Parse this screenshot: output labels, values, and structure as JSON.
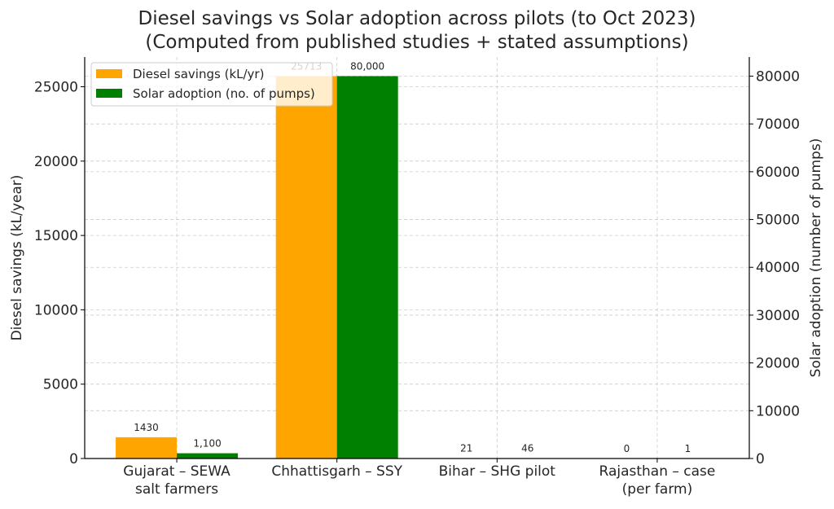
{
  "chart_data": {
    "type": "bar",
    "title_lines": [
      "Diesel savings vs Solar adoption across pilots (to Oct 2023)",
      "(Computed from published studies + stated assumptions)"
    ],
    "categories": [
      [
        "Gujarat – SEWA",
        "salt farmers"
      ],
      [
        "Chhattisgarh – SSY"
      ],
      [
        "Bihar – SHG pilot"
      ],
      [
        "Rajasthan – case",
        "(per farm)"
      ]
    ],
    "ylabel": "Diesel savings (kL/year)",
    "y2label": "Solar adoption (number of pumps)",
    "ylim": [
      0,
      27000
    ],
    "y2lim": [
      0,
      84000
    ],
    "yticks": [
      0,
      5000,
      10000,
      15000,
      20000,
      25000
    ],
    "y2ticks": [
      0,
      10000,
      20000,
      30000,
      40000,
      50000,
      60000,
      70000,
      80000
    ],
    "grid": true,
    "legend_position": "top-left",
    "series": [
      {
        "name": "Diesel savings (kL/yr)",
        "axis": "left",
        "color": "#FFA500",
        "values": [
          1430,
          25713,
          21,
          0
        ],
        "labels": [
          "1430",
          "25713",
          "21",
          "0"
        ]
      },
      {
        "name": "Solar adoption (no. of pumps)",
        "axis": "right",
        "color": "#008000",
        "values": [
          1100,
          80000,
          46,
          1
        ],
        "labels": [
          "1,100",
          "80,000",
          "46",
          "1"
        ]
      }
    ]
  }
}
